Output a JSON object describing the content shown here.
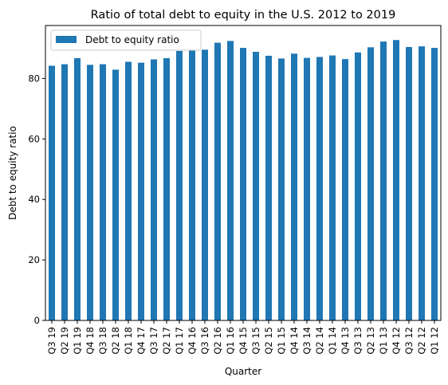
{
  "chart_data": {
    "type": "bar",
    "title": "Ratio of total debt to equity in the U.S. 2012 to 2019",
    "xlabel": "Quarter",
    "ylabel": "Debt to equity ratio",
    "ylim": [
      0,
      97.5
    ],
    "yticks": [
      0,
      20,
      40,
      60,
      80
    ],
    "legend": "top-left",
    "grid": false,
    "bar_color": "#1f77b4",
    "categories": [
      "Q3 19",
      "Q2 19",
      "Q1 19",
      "Q4 18",
      "Q3 18",
      "Q2 18",
      "Q1 18",
      "Q4 17",
      "Q3 17",
      "Q2 17",
      "Q1 17",
      "Q4 16",
      "Q3 16",
      "Q2 16",
      "Q1 16",
      "Q4 15",
      "Q3 15",
      "Q2 15",
      "Q1 15",
      "Q4 14",
      "Q3 14",
      "Q2 14",
      "Q1 14",
      "Q4 13",
      "Q3 13",
      "Q2 13",
      "Q1 13",
      "Q4 12",
      "Q3 12",
      "Q2 12",
      "Q1 12"
    ],
    "series": [
      {
        "name": "Debt to equity ratio",
        "values": [
          84.2,
          84.7,
          86.7,
          84.5,
          84.7,
          82.9,
          85.5,
          85.2,
          86.3,
          86.7,
          89.1,
          89.3,
          89.5,
          91.8,
          92.4,
          90.1,
          88.8,
          87.5,
          86.6,
          88.2,
          86.8,
          87.1,
          87.6,
          86.4,
          88.6,
          90.3,
          92.2,
          92.7,
          90.4,
          90.6,
          90.1
        ]
      }
    ]
  }
}
